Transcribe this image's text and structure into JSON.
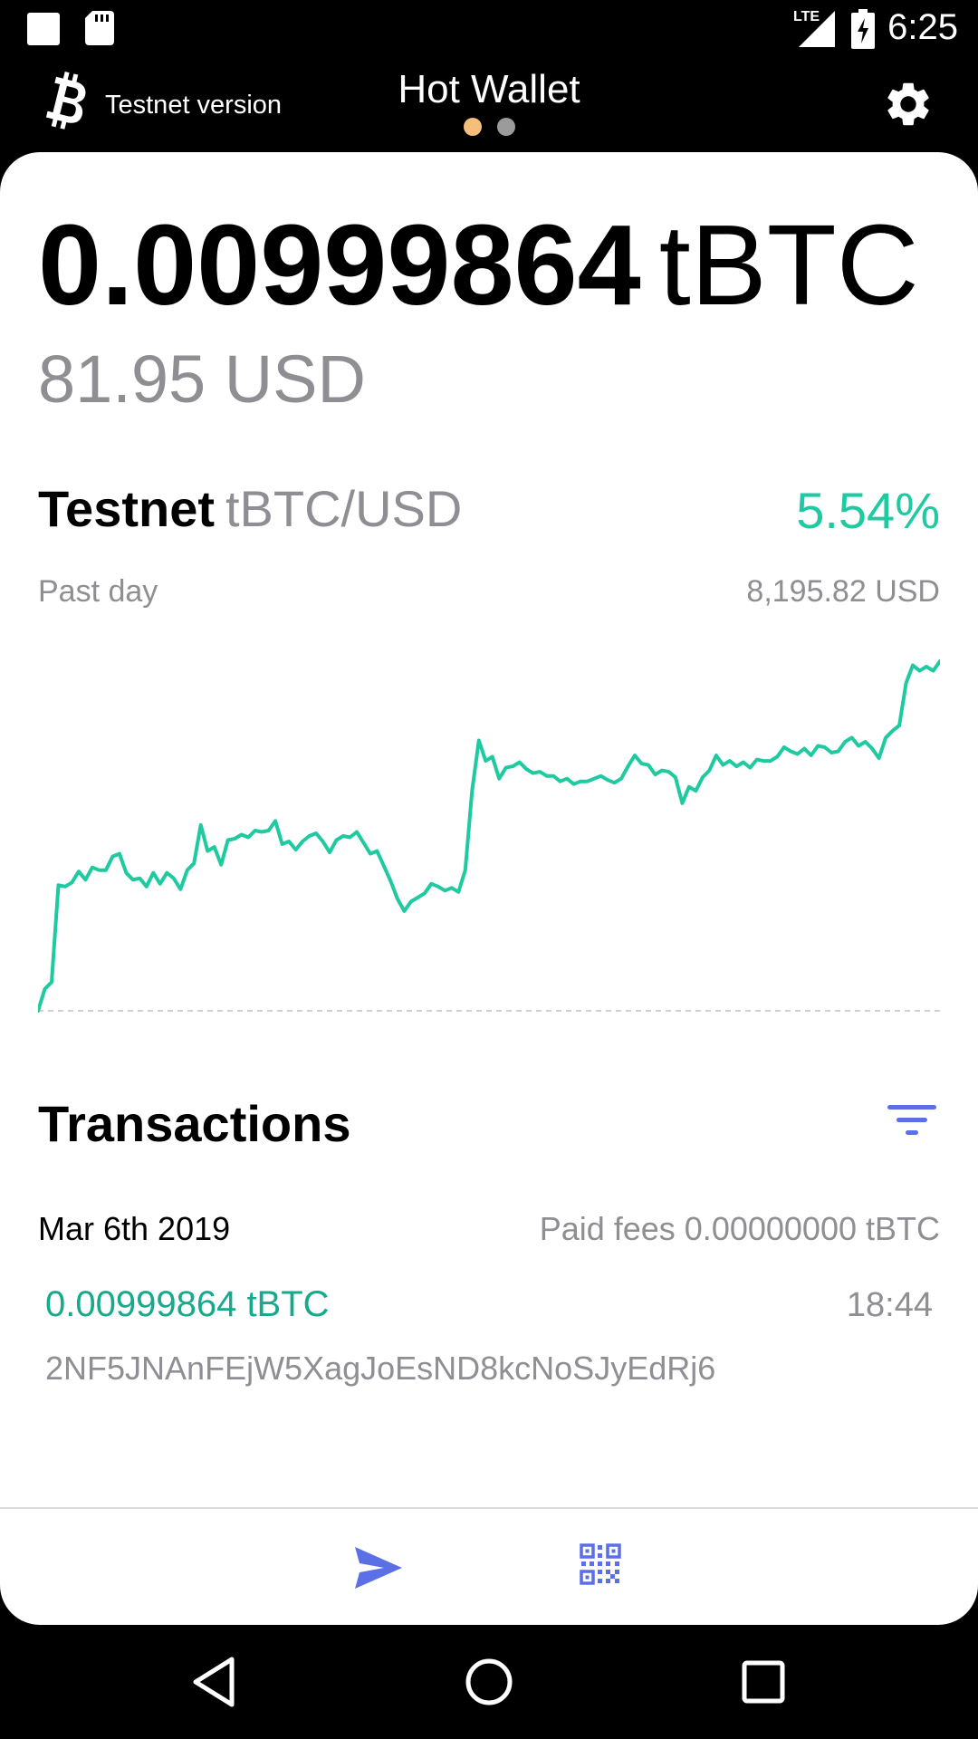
{
  "status_bar": {
    "time": "6:25",
    "network_label": "LTE"
  },
  "header": {
    "logo_icon": "bitcoin-logo-icon",
    "testnet_label": "Testnet version",
    "title": "Hot Wallet",
    "pager": {
      "pages": 2,
      "active": 0
    },
    "settings_icon": "gear-icon"
  },
  "balance": {
    "amount": "0.00999864",
    "unit": "tBTC",
    "fiat": "81.95 USD"
  },
  "market": {
    "network": "Testnet",
    "pair": "tBTC/USD",
    "change": "5.54%",
    "period": "Past day",
    "price": "8,195.82 USD"
  },
  "chart_data": {
    "type": "line",
    "title": "",
    "xlabel": "",
    "ylabel": "",
    "grid": false,
    "color": "#1fcaa0",
    "values": [
      7765,
      7781,
      7786,
      7857,
      7856,
      7859,
      7867,
      7861,
      7870,
      7868,
      7868,
      7878,
      7880,
      7866,
      7861,
      7862,
      7856,
      7866,
      7858,
      7866,
      7862,
      7854,
      7868,
      7873,
      7901,
      7882,
      7885,
      7872,
      7890,
      7891,
      7894,
      7892,
      7897,
      7896,
      7897,
      7904,
      7887,
      7889,
      7883,
      7889,
      7893,
      7895,
      7889,
      7881,
      7890,
      7893,
      7892,
      7896,
      7888,
      7880,
      7882,
      7871,
      7860,
      7847,
      7838,
      7845,
      7848,
      7851,
      7858,
      7856,
      7853,
      7855,
      7852,
      7868,
      7926,
      7963,
      7948,
      7951,
      7935,
      7943,
      7944,
      7947,
      7942,
      7939,
      7940,
      7937,
      7937,
      7933,
      7935,
      7931,
      7933,
      7933,
      7935,
      7937,
      7934,
      7932,
      7935,
      7944,
      7952,
      7946,
      7945,
      7938,
      7941,
      7940,
      7936,
      7917,
      7929,
      7926,
      7936,
      7941,
      7952,
      7945,
      7948,
      7944,
      7947,
      7943,
      7949,
      7948,
      7948,
      7951,
      7958,
      7955,
      7953,
      7957,
      7952,
      7959,
      7958,
      7954,
      7955,
      7962,
      7965,
      7959,
      7962,
      7957,
      7950,
      7965,
      7970,
      7974,
      8005,
      8018,
      8014,
      8017,
      8014,
      8021
    ]
  },
  "transactions": {
    "title": "Transactions",
    "filter_icon": "filter-icon",
    "groups": [
      {
        "date": "Mar 6th 2019",
        "fees": "Paid fees 0.00000000 tBTC",
        "items": [
          {
            "amount": "0.00999864 tBTC",
            "time": "18:44",
            "address": "2NF5JNAnFEjW5XagJoEsND8kcNoSJyEdRj6"
          }
        ]
      }
    ]
  },
  "actions": {
    "send_icon": "send-icon",
    "receive_icon": "qr-code-icon"
  },
  "colors": {
    "accent_green": "#1fcaa0",
    "tx_green": "#17a98b",
    "action_blue": "#5b6fe6",
    "pager_active": "#f5be7a",
    "muted_text": "#8e8e93"
  }
}
